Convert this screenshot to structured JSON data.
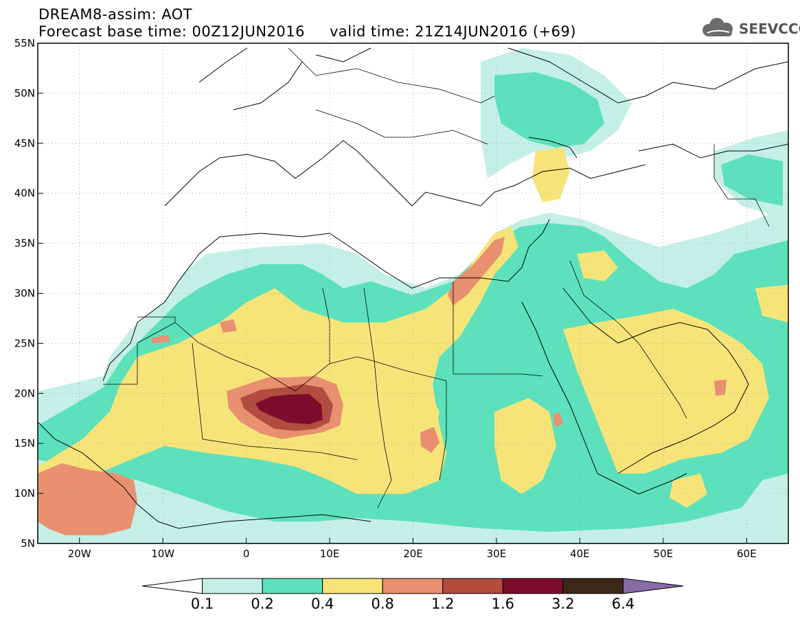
{
  "header": {
    "title": "DREAM8-assim: AOT",
    "base_time": "Forecast base time: 00Z12JUN2016",
    "valid_time": "valid time: 21Z14JUN2016 (+69)"
  },
  "logo": {
    "text": "SEEVCCC",
    "icon": "cloud-icon"
  },
  "map": {
    "lon_range": [
      -25,
      65
    ],
    "lat_range": [
      5,
      55
    ],
    "lat_ticks": [
      {
        "v": 55,
        "label": "55N"
      },
      {
        "v": 50,
        "label": "50N"
      },
      {
        "v": 45,
        "label": "45N"
      },
      {
        "v": 40,
        "label": "40N"
      },
      {
        "v": 35,
        "label": "35N"
      },
      {
        "v": 30,
        "label": "30N"
      },
      {
        "v": 25,
        "label": "25N"
      },
      {
        "v": 20,
        "label": "20N"
      },
      {
        "v": 15,
        "label": "15N"
      },
      {
        "v": 10,
        "label": "10N"
      },
      {
        "v": 5,
        "label": "5N"
      }
    ],
    "lon_ticks": [
      {
        "v": -20,
        "label": "20W"
      },
      {
        "v": -10,
        "label": "10W"
      },
      {
        "v": 0,
        "label": "0"
      },
      {
        "v": 10,
        "label": "10E"
      },
      {
        "v": 20,
        "label": "20E"
      },
      {
        "v": 30,
        "label": "30E"
      },
      {
        "v": 40,
        "label": "40E"
      },
      {
        "v": 50,
        "label": "50E"
      },
      {
        "v": 60,
        "label": "60E"
      }
    ]
  },
  "colorbar": {
    "levels": [
      "0.1",
      "0.2",
      "0.4",
      "0.8",
      "1.2",
      "1.6",
      "3.2",
      "6.4"
    ],
    "colors": [
      "#ffffff",
      "#c4efe6",
      "#5ce1bc",
      "#f7e479",
      "#e89070",
      "#b14c3e",
      "#7c0c2b",
      "#3b2818",
      "#8a6aa8"
    ]
  }
}
